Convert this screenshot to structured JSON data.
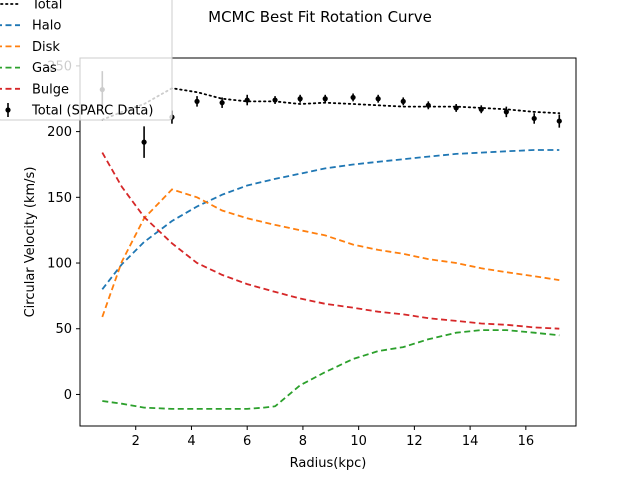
{
  "chart_data": {
    "type": "line",
    "title": "MCMC Best Fit Rotation Curve",
    "xlabel": "Radius(kpc)",
    "ylabel": "Circular Velocity (km/s)",
    "xlim": [
      0.0,
      17.8
    ],
    "ylim": [
      -24,
      256
    ],
    "xticks": [
      2,
      4,
      6,
      8,
      10,
      12,
      14,
      16
    ],
    "yticks": [
      0,
      50,
      100,
      150,
      200,
      250
    ],
    "legend_placement": "top-left",
    "series": [
      {
        "name": "Total",
        "style": "dotted",
        "color": "#000000",
        "x": [
          0.8,
          1.5,
          2.3,
          3.3,
          4.2,
          5.1,
          6.0,
          7.0,
          7.9,
          8.8,
          9.8,
          10.7,
          11.6,
          12.5,
          13.5,
          14.4,
          15.3,
          16.3,
          17.2
        ],
        "y": [
          209,
          215,
          221,
          233,
          230,
          225,
          223,
          223,
          221,
          222,
          221,
          220,
          219,
          219,
          219,
          218,
          217,
          215,
          214
        ]
      },
      {
        "name": "Halo",
        "style": "dashed",
        "color": "#1f77b4",
        "x": [
          0.8,
          1.5,
          2.3,
          3.3,
          4.2,
          5.1,
          6.0,
          7.0,
          7.9,
          8.8,
          9.8,
          10.7,
          11.6,
          12.5,
          13.5,
          14.4,
          15.3,
          16.3,
          17.2
        ],
        "y": [
          80,
          99,
          116,
          132,
          143,
          152,
          159,
          164,
          168,
          172,
          175,
          177,
          179,
          181,
          183,
          184,
          185,
          186,
          186
        ]
      },
      {
        "name": "Disk",
        "style": "dashed",
        "color": "#ff7f0e",
        "x": [
          0.8,
          1.5,
          2.3,
          3.3,
          4.2,
          5.1,
          6.0,
          7.0,
          7.9,
          8.8,
          9.8,
          10.7,
          11.6,
          12.5,
          13.5,
          14.4,
          15.3,
          16.3,
          17.2
        ],
        "y": [
          59,
          101,
          134,
          156,
          150,
          140,
          134,
          129,
          125,
          121,
          114,
          110,
          107,
          103,
          100,
          96,
          93,
          90,
          87
        ]
      },
      {
        "name": "Gas",
        "style": "dashed",
        "color": "#2ca02c",
        "x": [
          0.8,
          1.5,
          2.3,
          3.3,
          4.2,
          5.1,
          6.0,
          6.6,
          7.0,
          7.9,
          8.8,
          9.8,
          10.7,
          11.6,
          12.5,
          13.5,
          14.4,
          15.3,
          16.3,
          17.2
        ],
        "y": [
          -5,
          -7,
          -10,
          -11,
          -11,
          -11,
          -11,
          -10,
          -9,
          7,
          17,
          27,
          33,
          36,
          42,
          47,
          49,
          49,
          47,
          45
        ]
      },
      {
        "name": "Bulge",
        "style": "dashed",
        "color": "#d62728",
        "x": [
          0.8,
          1.5,
          2.3,
          3.3,
          4.2,
          5.1,
          6.0,
          7.0,
          7.9,
          8.8,
          9.8,
          10.7,
          11.6,
          12.5,
          13.5,
          14.4,
          15.3,
          16.3,
          17.2
        ],
        "y": [
          184,
          158,
          135,
          115,
          100,
          91,
          84,
          78,
          73,
          69,
          66,
          63,
          61,
          58,
          56,
          54,
          53,
          51,
          50
        ]
      }
    ],
    "errorbars": {
      "name": "Total (SPARC Data)",
      "color": "#000000",
      "x": [
        0.8,
        2.3,
        3.3,
        4.2,
        5.1,
        6.0,
        7.0,
        7.9,
        8.8,
        9.8,
        10.7,
        11.6,
        12.5,
        13.5,
        14.4,
        15.3,
        16.3,
        17.2
      ],
      "y": [
        232,
        192,
        211,
        223,
        222,
        224,
        224,
        225,
        225,
        226,
        225,
        223,
        220,
        218,
        217,
        215,
        210,
        208
      ],
      "yerr": [
        14,
        12,
        5,
        4,
        4,
        4,
        3,
        3,
        3,
        3,
        3,
        3,
        3,
        3,
        3,
        4,
        4,
        5
      ]
    }
  }
}
